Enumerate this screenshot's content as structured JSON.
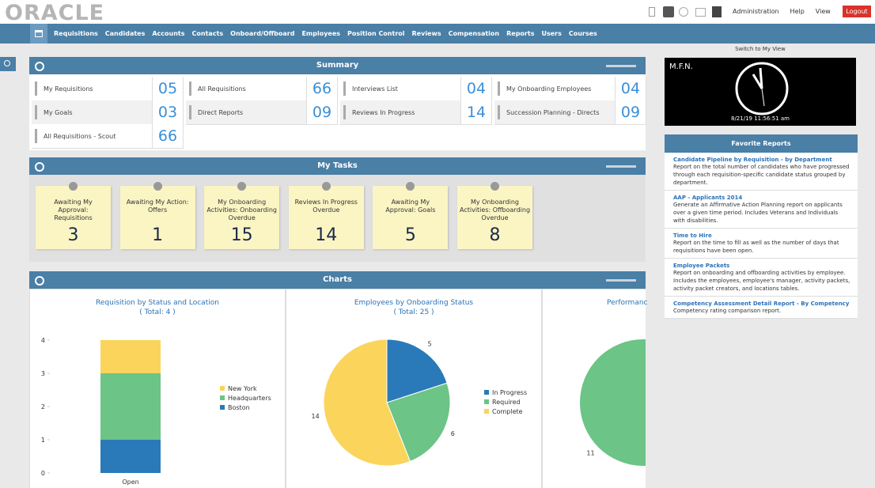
{
  "header": {
    "logo": "ORACLE",
    "menus": [
      "Administration",
      "Help",
      "View"
    ],
    "logout": "Logout"
  },
  "nav": [
    "Requisitions",
    "Candidates",
    "Accounts",
    "Contacts",
    "Onboard/Offboard",
    "Employees",
    "Position Control",
    "Reviews",
    "Compensation",
    "Reports",
    "Users",
    "Courses"
  ],
  "summary": {
    "title": "Summary",
    "items": [
      {
        "label": "My Requisitions",
        "value": "05"
      },
      {
        "label": "All Requisitions",
        "value": "66"
      },
      {
        "label": "Interviews List",
        "value": "04"
      },
      {
        "label": "My Onboarding Employees",
        "value": "04"
      },
      {
        "label": "My Goals",
        "value": "03"
      },
      {
        "label": "Direct Reports",
        "value": "09"
      },
      {
        "label": "Reviews In Progress",
        "value": "14"
      },
      {
        "label": "Succession Planning - Directs",
        "value": "09"
      },
      {
        "label": "All Requisitions - Scout",
        "value": "66"
      }
    ]
  },
  "tasks": {
    "title": "My Tasks",
    "items": [
      {
        "label": "Awaiting My Approval: Requisitions",
        "value": "3"
      },
      {
        "label": "Awaiting My Action: Offers",
        "value": "1"
      },
      {
        "label": "My Onboarding Activities: Onboarding Overdue",
        "value": "15"
      },
      {
        "label": "Reviews In Progress Overdue",
        "value": "14"
      },
      {
        "label": "Awaiting My Approval: Goals",
        "value": "5"
      },
      {
        "label": "My Onboarding Activities: Offboarding Overdue",
        "value": "8"
      }
    ]
  },
  "charts_panel": {
    "title": "Charts"
  },
  "chart_data": [
    {
      "type": "stacked_bar",
      "title": "Requisition by Status and Location",
      "subtitle": "( Total: 4 )",
      "categories": [
        "Open"
      ],
      "series": [
        {
          "name": "New York",
          "color": "#fbd45b",
          "values": [
            1
          ]
        },
        {
          "name": "Headquarters",
          "color": "#6cc486",
          "values": [
            2
          ]
        },
        {
          "name": "Boston",
          "color": "#2a7ab9",
          "values": [
            1
          ]
        }
      ],
      "ylim": [
        0,
        4
      ],
      "yticks": [
        0,
        1,
        2,
        3,
        4
      ]
    },
    {
      "type": "pie",
      "title": "Employees by Onboarding Status",
      "subtitle": "( Total: 25 )",
      "categories": [
        "In Progress",
        "Required",
        "Complete"
      ],
      "values": [
        5,
        6,
        14
      ],
      "colors": [
        "#2a7ab9",
        "#6cc486",
        "#fbd45b"
      ]
    },
    {
      "type": "pie",
      "title": "Performanc",
      "values": [
        11
      ],
      "colors": [
        "#6cc486"
      ]
    }
  ],
  "clock": {
    "switch": "Switch to My View",
    "name": "M.F.N.",
    "time": "8/21/19 11:56:51 am"
  },
  "favorites": {
    "title": "Favorite Reports",
    "items": [
      {
        "title": "Candidate Pipeline by Requisition - by Department",
        "desc": "Report on the total number of candidates who have progressed through each requisition-specific candidate status grouped by department."
      },
      {
        "title": "AAP - Applicants 2014",
        "desc": "Generate an Affirmative Action Planning report on applicants over a given time period. Includes Veterans and Individuals with disabilities."
      },
      {
        "title": "Time to Hire",
        "desc": "Report on the time to fill as well as the number of days that requisitions have been open."
      },
      {
        "title": "Employee Packets",
        "desc": "Report on onboarding and offboarding activities by employee. Includes the employees, employee's manager, activity packets, activity packet creators, and locations tables."
      },
      {
        "title": "Competency Assessment Detail Report - By Competency",
        "desc": "Competency rating comparison report."
      }
    ]
  }
}
